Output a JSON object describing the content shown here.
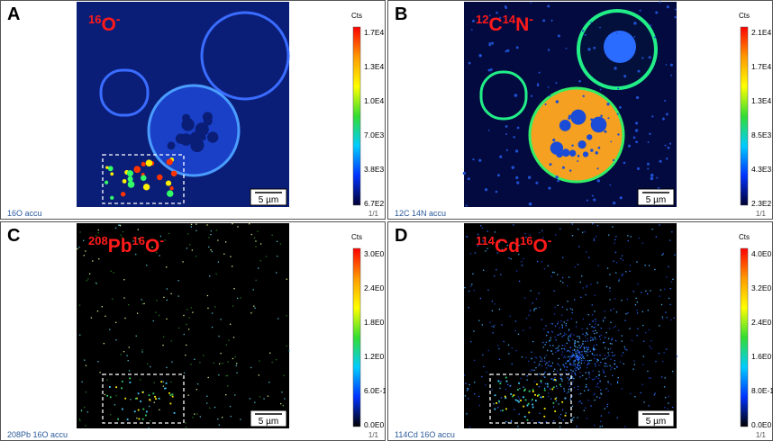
{
  "panels": [
    {
      "letter": "A",
      "ion": [
        {
          "mass": "16",
          "symbol": "O"
        }
      ],
      "charge": "-",
      "unit": "Cts",
      "scale_ticks": [
        "1.7E4",
        "1.3E4",
        "1.0E4",
        "7.0E3",
        "3.8E3",
        "6.7E2"
      ],
      "caption": "16O accu",
      "frame": "1/1",
      "scale_bar": "5 µm"
    },
    {
      "letter": "B",
      "ion": [
        {
          "mass": "12",
          "symbol": "C"
        },
        {
          "mass": "14",
          "symbol": "N"
        }
      ],
      "charge": "-",
      "unit": "Cts",
      "scale_ticks": [
        "2.1E4",
        "1.7E4",
        "1.3E4",
        "8.5E3",
        "4.3E3",
        "2.3E2"
      ],
      "caption": "12C 14N accu",
      "frame": "1/1",
      "scale_bar": "5 µm"
    },
    {
      "letter": "C",
      "ion": [
        {
          "mass": "208",
          "symbol": "Pb"
        },
        {
          "mass": "16",
          "symbol": "O"
        }
      ],
      "charge": "-",
      "unit": "Cts",
      "scale_ticks": [
        "3.0E0",
        "2.4E0",
        "1.8E0",
        "1.2E0",
        "6.0E-1",
        "0.0E0"
      ],
      "caption": "208Pb 16O accu",
      "frame": "1/1",
      "scale_bar": "5 µm"
    },
    {
      "letter": "D",
      "ion": [
        {
          "mass": "114",
          "symbol": "Cd"
        },
        {
          "mass": "16",
          "symbol": "O"
        }
      ],
      "charge": "-",
      "unit": "Cts",
      "scale_ticks": [
        "4.0E0",
        "3.2E0",
        "2.4E0",
        "1.6E0",
        "8.0E-1",
        "0.0E0"
      ],
      "caption": "114Cd 16O accu",
      "frame": "1/1",
      "scale_bar": "5 µm"
    }
  ]
}
